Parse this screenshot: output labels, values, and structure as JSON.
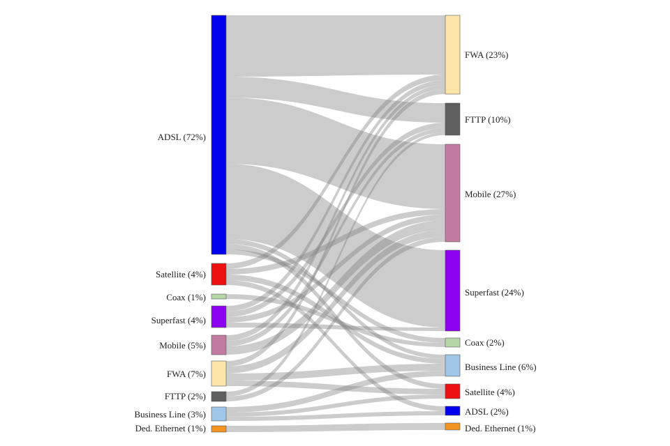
{
  "diagram": {
    "type": "sankey",
    "colors": {
      "link": "#7f7f7f",
      "node_stroke": "#555555"
    },
    "left_nodes": [
      {
        "id": "l-adsl",
        "label": "ADSL (72%)",
        "color": "#0000ee"
      },
      {
        "id": "l-satellite",
        "label": "Satellite (4%)",
        "color": "#ee1111"
      },
      {
        "id": "l-coax",
        "label": "Coax (1%)",
        "color": "#b5d7a8"
      },
      {
        "id": "l-superfast",
        "label": "Superfast (4%)",
        "color": "#8b00ee"
      },
      {
        "id": "l-mobile",
        "label": "Mobile (5%)",
        "color": "#c27ba0"
      },
      {
        "id": "l-fwa",
        "label": "FWA (7%)",
        "color": "#fde4a8"
      },
      {
        "id": "l-fttp",
        "label": "FTTP (2%)",
        "color": "#5f5f5f"
      },
      {
        "id": "l-business",
        "label": "Business Line (3%)",
        "color": "#9fc5e8"
      },
      {
        "id": "l-ded",
        "label": "Ded. Ethernet (1%)",
        "color": "#f39322"
      }
    ],
    "right_nodes": [
      {
        "id": "r-fwa",
        "label": "FWA (23%)",
        "color": "#fde4a8"
      },
      {
        "id": "r-fttp",
        "label": "FTTP (10%)",
        "color": "#5f5f5f"
      },
      {
        "id": "r-mobile",
        "label": "Mobile (27%)",
        "color": "#c27ba0"
      },
      {
        "id": "r-superfast",
        "label": "Superfast (24%)",
        "color": "#8b00ee"
      },
      {
        "id": "r-coax",
        "label": "Coax (2%)",
        "color": "#b5d7a8"
      },
      {
        "id": "r-business",
        "label": "Business Line (6%)",
        "color": "#9fc5e8"
      },
      {
        "id": "r-satellite",
        "label": "Satellite (4%)",
        "color": "#ee1111"
      },
      {
        "id": "r-adsl",
        "label": "ADSL (2%)",
        "color": "#0000ee"
      },
      {
        "id": "r-ded",
        "label": "Ded. Ethernet (1%)",
        "color": "#f39322"
      }
    ]
  }
}
